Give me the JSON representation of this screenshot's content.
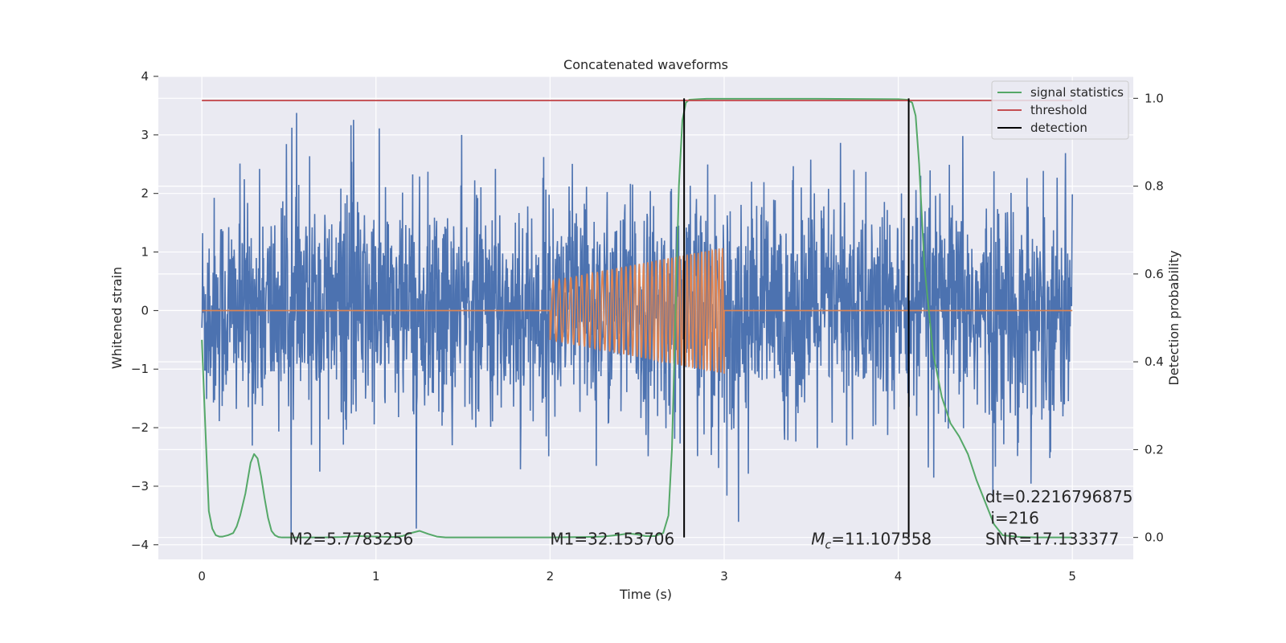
{
  "chart_data": {
    "type": "line",
    "title": "Concatenated waveforms",
    "xlabel": "Time (s)",
    "ylabel": "Whitened strain",
    "ylabel_right": "Detection probability",
    "xlim": [
      -0.25,
      5.35
    ],
    "ylim": [
      -4.25,
      4.0
    ],
    "ylim_right": [
      -0.05,
      1.05
    ],
    "x_ticks": [
      0,
      1,
      2,
      3,
      4,
      5
    ],
    "x_tick_labels": [
      "0",
      "1",
      "2",
      "3",
      "4",
      "5"
    ],
    "y_ticks": [
      -4,
      -3,
      -2,
      -1,
      0,
      1,
      2,
      3,
      4
    ],
    "y_tick_labels": [
      "−4",
      "−3",
      "−2",
      "−1",
      "0",
      "1",
      "2",
      "3",
      "4"
    ],
    "y_right_ticks": [
      0.0,
      0.2,
      0.4,
      0.6,
      0.8,
      1.0
    ],
    "y_right_tick_labels": [
      "0.0",
      "0.2",
      "0.4",
      "0.6",
      "0.8",
      "1.0"
    ],
    "grid": true,
    "legend_position": "top-right",
    "legend": [
      {
        "label": "signal statistics",
        "color": "#55a868"
      },
      {
        "label": "threshold",
        "color": "#c44e52"
      },
      {
        "label": "detection",
        "color": "#000000"
      }
    ],
    "series": [
      {
        "role": "strain",
        "axis": "left",
        "color": "#4c72b0",
        "x_range": [
          0,
          5
        ],
        "envelope_max": 3.4,
        "envelope_min": -3.9
      },
      {
        "role": "injected waveform",
        "axis": "left",
        "color": "#dd8452",
        "x_range": [
          2.0,
          3.0
        ],
        "amplitude_start": 0.5,
        "amplitude_end": 1.1
      },
      {
        "name": "signal statistics",
        "axis": "right",
        "color": "#55a868",
        "x": [
          0.0,
          0.02,
          0.04,
          0.06,
          0.08,
          0.1,
          0.12,
          0.15,
          0.18,
          0.2,
          0.22,
          0.25,
          0.28,
          0.3,
          0.32,
          0.34,
          0.36,
          0.38,
          0.4,
          0.42,
          0.44,
          0.46,
          0.5,
          0.6,
          0.7,
          0.8,
          0.9,
          1.0,
          1.1,
          1.15,
          1.2,
          1.25,
          1.3,
          1.35,
          1.4,
          1.6,
          1.8,
          2.0,
          2.2,
          2.3,
          2.4,
          2.45,
          2.5,
          2.55,
          2.6,
          2.65,
          2.68,
          2.7,
          2.72,
          2.74,
          2.76,
          2.78,
          2.8,
          2.85,
          2.9,
          3.0,
          3.5,
          4.0,
          4.05,
          4.08,
          4.1,
          4.12,
          4.15,
          4.2,
          4.25,
          4.3,
          4.35,
          4.4,
          4.45,
          4.5,
          4.55,
          4.6,
          4.7,
          4.8,
          4.9,
          5.0
        ],
        "y": [
          0.45,
          0.25,
          0.06,
          0.02,
          0.005,
          0.002,
          0.002,
          0.005,
          0.01,
          0.025,
          0.05,
          0.1,
          0.17,
          0.19,
          0.18,
          0.14,
          0.09,
          0.045,
          0.015,
          0.005,
          0.001,
          0.0,
          0.0,
          0.0,
          0.0,
          0.001,
          0.003,
          0.002,
          0.001,
          0.003,
          0.01,
          0.015,
          0.008,
          0.002,
          0.0,
          0.0,
          0.0,
          0.0,
          0.001,
          0.002,
          0.006,
          0.009,
          0.007,
          0.003,
          0.003,
          0.01,
          0.05,
          0.2,
          0.5,
          0.8,
          0.95,
          0.99,
          0.997,
          0.998,
          0.999,
          0.999,
          0.999,
          0.998,
          0.997,
          0.99,
          0.96,
          0.85,
          0.62,
          0.42,
          0.32,
          0.26,
          0.23,
          0.19,
          0.13,
          0.08,
          0.03,
          0.005,
          0.001,
          0.0,
          0.0,
          0.0
        ]
      },
      {
        "name": "threshold",
        "axis": "right",
        "color": "#c44e52",
        "x": [
          0,
          5
        ],
        "y": [
          0.995,
          0.995
        ]
      },
      {
        "name": "detection",
        "axis": "right",
        "color": "#000000",
        "type": "vlines",
        "x": [
          2.77,
          4.06
        ],
        "y_range": [
          0.0,
          1.0
        ]
      }
    ],
    "annotations": [
      {
        "text": "M2=5.7783256",
        "x": 0.5,
        "y": -3.9
      },
      {
        "text": "M1=32.153706",
        "x": 2.0,
        "y": -3.9
      },
      {
        "text": "=11.107558",
        "prefix": "M",
        "subscript": "c",
        "x": 3.5,
        "y": -3.9
      },
      {
        "text": "dt=0.2216796875",
        "x": 4.5,
        "y": -3.18
      },
      {
        "text": "i=216",
        "x": 4.53,
        "y": -3.54
      },
      {
        "text": "SNR=17.133377",
        "x": 4.5,
        "y": -3.9
      }
    ]
  }
}
